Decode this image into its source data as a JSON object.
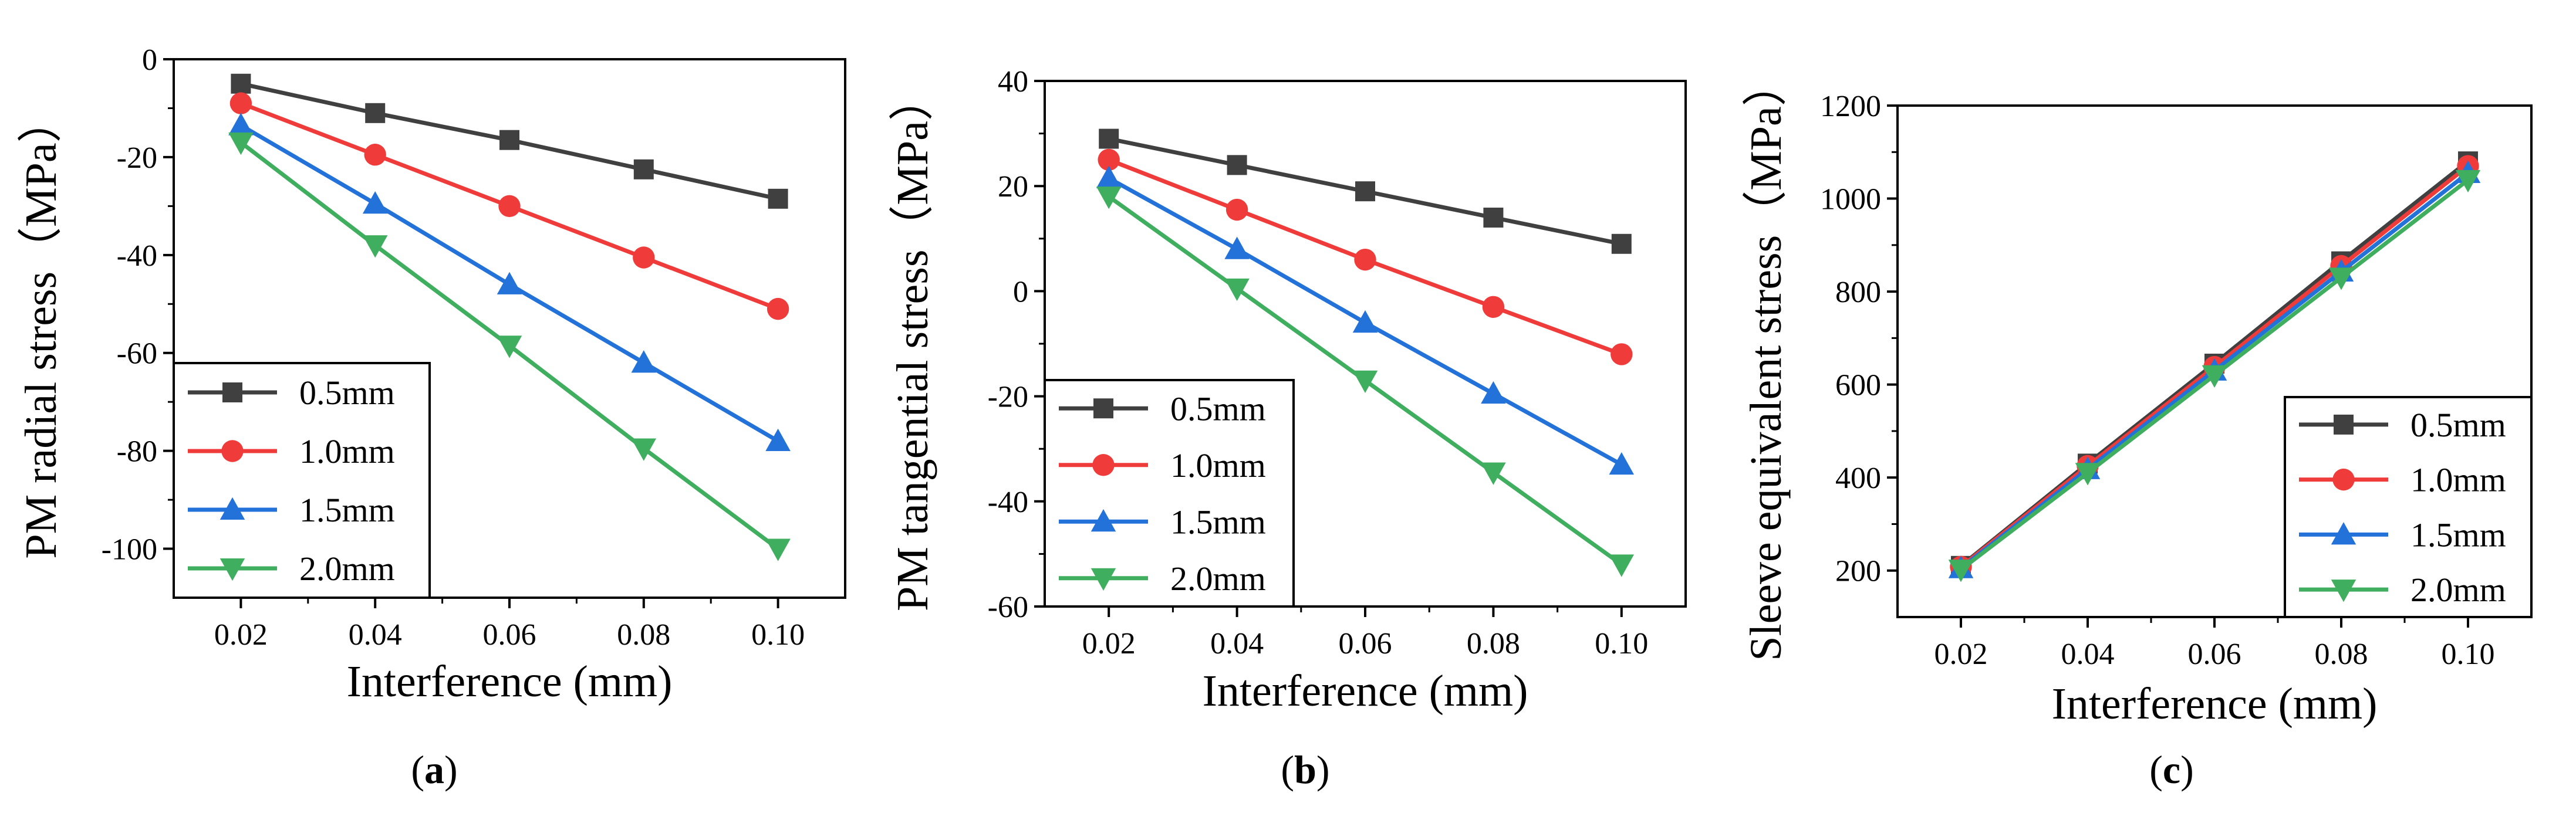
{
  "chart_data": [
    {
      "type": "line",
      "panel": "a",
      "caption": {
        "open": "(",
        "letter": "a",
        "close": ")"
      },
      "xlabel": "Interference (mm)",
      "ylabel": "PM radial stress（MPa）",
      "x": [
        0.02,
        0.04,
        0.06,
        0.08,
        0.1
      ],
      "x_tick_labels": [
        "0.02",
        "0.04",
        "0.06",
        "0.08",
        "0.10"
      ],
      "xlim": [
        0.01,
        0.11
      ],
      "ylim": [
        -110,
        0
      ],
      "y_ticks": [
        0,
        -20,
        -40,
        -60,
        -80,
        -100
      ],
      "y_tick_labels": [
        "0",
        "-20",
        "-40",
        "-60",
        "-80",
        "-100"
      ],
      "legend_position": "bottom-left",
      "series": [
        {
          "name": "0.5mm",
          "color": "#404040",
          "marker": "square",
          "values": [
            -5,
            -11,
            -16.5,
            -22.5,
            -28.5
          ]
        },
        {
          "name": "1.0mm",
          "color": "#f03b3b",
          "marker": "circle",
          "values": [
            -9,
            -19.5,
            -30,
            -40.5,
            -51
          ]
        },
        {
          "name": "1.5mm",
          "color": "#2272d9",
          "marker": "triangle-up",
          "values": [
            -13.5,
            -29.5,
            -46,
            -62,
            -78
          ]
        },
        {
          "name": "2.0mm",
          "color": "#3fae5f",
          "marker": "triangle-down",
          "values": [
            -17,
            -38,
            -58.5,
            -79.5,
            -100
          ]
        }
      ]
    },
    {
      "type": "line",
      "panel": "b",
      "caption": {
        "open": "(",
        "letter": "b",
        "close": ")"
      },
      "xlabel": "Interference (mm)",
      "ylabel": "PM tangential stress（MPa）",
      "x": [
        0.02,
        0.04,
        0.06,
        0.08,
        0.1
      ],
      "x_tick_labels": [
        "0.02",
        "0.04",
        "0.06",
        "0.08",
        "0.10"
      ],
      "xlim": [
        0.01,
        0.11
      ],
      "ylim": [
        -60,
        40
      ],
      "y_ticks": [
        40,
        20,
        0,
        -20,
        -40,
        -60
      ],
      "y_tick_labels": [
        "40",
        "20",
        "0",
        "-20",
        "-40",
        "-60"
      ],
      "legend_position": "bottom-left",
      "series": [
        {
          "name": "0.5mm",
          "color": "#404040",
          "marker": "square",
          "values": [
            29,
            24,
            19,
            14,
            9
          ]
        },
        {
          "name": "1.0mm",
          "color": "#f03b3b",
          "marker": "circle",
          "values": [
            25,
            15.5,
            6,
            -3,
            -12
          ]
        },
        {
          "name": "1.5mm",
          "color": "#2272d9",
          "marker": "triangle-up",
          "values": [
            21.5,
            8,
            -6,
            -19.5,
            -33
          ]
        },
        {
          "name": "2.0mm",
          "color": "#3fae5f",
          "marker": "triangle-down",
          "values": [
            18,
            0.5,
            -17,
            -34.5,
            -52
          ]
        }
      ]
    },
    {
      "type": "line",
      "panel": "c",
      "caption": {
        "open": "(",
        "letter": "c",
        "close": ")"
      },
      "xlabel": "Interference (mm)",
      "ylabel": "Sleeve equivalent stress（MPa）",
      "x": [
        0.02,
        0.04,
        0.06,
        0.08,
        0.1
      ],
      "x_tick_labels": [
        "0.02",
        "0.04",
        "0.06",
        "0.08",
        "0.10"
      ],
      "xlim": [
        0.01,
        0.11
      ],
      "ylim": [
        100,
        1200
      ],
      "y_ticks": [
        1200,
        1000,
        800,
        600,
        400,
        200
      ],
      "y_tick_labels": [
        "1200",
        "1000",
        "800",
        "600",
        "400",
        "200"
      ],
      "legend_position": "bottom-right",
      "series": [
        {
          "name": "0.5mm",
          "color": "#404040",
          "marker": "square",
          "values": [
            210,
            430,
            645,
            865,
            1080
          ]
        },
        {
          "name": "1.0mm",
          "color": "#f03b3b",
          "marker": "circle",
          "values": [
            208,
            425,
            638,
            855,
            1070
          ]
        },
        {
          "name": "1.5mm",
          "color": "#2272d9",
          "marker": "triangle-up",
          "values": [
            205,
            418,
            630,
            843,
            1055
          ]
        },
        {
          "name": "2.0mm",
          "color": "#3fae5f",
          "marker": "triangle-down",
          "values": [
            202,
            410,
            620,
            830,
            1040
          ]
        }
      ]
    }
  ]
}
